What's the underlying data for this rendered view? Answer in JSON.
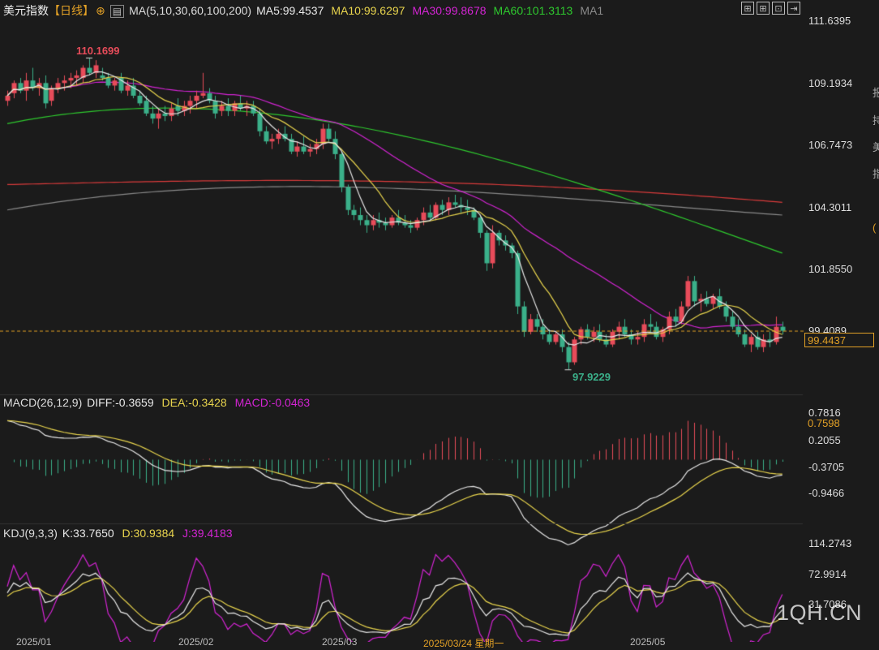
{
  "header": {
    "title": "美元指数",
    "period": "【日线】",
    "ma_label": "MA(5,10,30,60,100,200)",
    "ma_values": [
      {
        "label": "MA5:99.4537",
        "color": "#e8e8e8"
      },
      {
        "label": "MA10:99.6297",
        "color": "#e8d44d"
      },
      {
        "label": "MA30:99.8678",
        "color": "#d424d4"
      },
      {
        "label": "MA60:101.3113",
        "color": "#2ec92e"
      },
      {
        "label": "MA1",
        "color": "#8a8a8a"
      }
    ]
  },
  "toolbar_icons": [
    "grid-icon",
    "grid-icon",
    "export-icon",
    "next-icon"
  ],
  "macd_header": {
    "label": "MACD(26,12,9)",
    "diff": "DIFF:-0.3659",
    "dea": "DEA:-0.3428",
    "macd": "MACD:-0.0463"
  },
  "kdj_header": {
    "label": "KDJ(9,3,3)",
    "k": "K:33.7650",
    "d": "D:30.9384",
    "j": "J:39.4183"
  },
  "price_axis": [
    "111.6395",
    "109.1934",
    "106.7473",
    "104.3011",
    "101.8550",
    "99.4089"
  ],
  "macd_axis": [
    "0.7816",
    "0.2055",
    "-0.3705",
    "-0.9466"
  ],
  "kdj_axis": [
    "114.2743",
    "72.9914",
    "31.7086"
  ],
  "last_price": "99.4437",
  "macd_last": "0.7598",
  "high_label": "110.1699",
  "low_label": "97.9229",
  "x_dates": [
    "2025/01",
    "2025/02",
    "2025/03",
    "2025/03/24 星期一",
    "2025/05"
  ],
  "edge_glyphs": [
    "报",
    "持",
    "美",
    "指",
    "("
  ],
  "watermark": "1QH.CN",
  "colors": {
    "up": "#e84c5a",
    "down": "#3bb08a",
    "bg": "#1b1b1b",
    "ma5": "#e8e8e8",
    "ma10": "#e8d44d",
    "ma30": "#d424d4",
    "ma60": "#2ec92e",
    "ma100": "#8a8a8a",
    "ma200": "#d93b3b",
    "lastline": "#e3a126"
  },
  "chart_data": {
    "type": "candlestick",
    "ohlc": [
      [
        108.5,
        108.9,
        108.3,
        108.7
      ],
      [
        108.8,
        109.3,
        108.6,
        109.2
      ],
      [
        109.2,
        109.4,
        108.8,
        108.9
      ],
      [
        108.9,
        109.6,
        108.5,
        109.3
      ],
      [
        109.3,
        109.8,
        108.9,
        109.0
      ],
      [
        109.0,
        109.4,
        108.7,
        109.2
      ],
      [
        109.2,
        109.5,
        108.2,
        108.4
      ],
      [
        108.5,
        109.1,
        108.3,
        109.0
      ],
      [
        109.0,
        109.4,
        108.8,
        109.2
      ],
      [
        109.2,
        109.5,
        108.9,
        109.3
      ],
      [
        109.3,
        109.6,
        109.0,
        109.4
      ],
      [
        109.4,
        109.7,
        109.1,
        109.5
      ],
      [
        109.4,
        109.9,
        109.2,
        109.8
      ],
      [
        109.8,
        110.2,
        109.5,
        109.6
      ],
      [
        109.6,
        110.1,
        109.4,
        109.9
      ],
      [
        109.5,
        109.8,
        109.3,
        109.4
      ],
      [
        109.4,
        109.6,
        109.0,
        109.1
      ],
      [
        109.1,
        109.4,
        108.9,
        109.3
      ],
      [
        109.4,
        109.6,
        108.8,
        108.9
      ],
      [
        108.9,
        109.3,
        108.7,
        109.1
      ],
      [
        109.1,
        109.4,
        108.6,
        108.7
      ],
      [
        108.7,
        108.9,
        108.3,
        108.4
      ],
      [
        108.5,
        108.7,
        107.9,
        108.0
      ],
      [
        108.0,
        108.3,
        107.6,
        107.8
      ],
      [
        107.8,
        108.2,
        107.4,
        108.0
      ],
      [
        108.0,
        108.3,
        107.7,
        107.9
      ],
      [
        107.9,
        108.4,
        107.7,
        108.2
      ],
      [
        108.3,
        108.6,
        107.9,
        108.1
      ],
      [
        108.1,
        108.5,
        107.9,
        108.3
      ],
      [
        108.3,
        108.7,
        108.0,
        108.5
      ],
      [
        108.5,
        108.9,
        108.2,
        108.7
      ],
      [
        108.7,
        109.6,
        108.6,
        108.8
      ],
      [
        108.8,
        109.0,
        108.4,
        108.5
      ],
      [
        108.5,
        108.7,
        107.8,
        108.0
      ],
      [
        108.1,
        108.5,
        107.9,
        108.3
      ],
      [
        108.3,
        108.6,
        107.9,
        108.1
      ],
      [
        108.1,
        108.5,
        107.9,
        108.4
      ],
      [
        108.4,
        108.7,
        108.1,
        108.2
      ],
      [
        108.2,
        108.5,
        107.9,
        108.3
      ],
      [
        108.3,
        108.5,
        107.9,
        108.0
      ],
      [
        108.0,
        108.2,
        107.1,
        107.3
      ],
      [
        107.3,
        107.5,
        106.8,
        106.9
      ],
      [
        106.9,
        107.2,
        106.6,
        107.0
      ],
      [
        107.0,
        107.4,
        106.8,
        107.2
      ],
      [
        107.2,
        107.5,
        106.9,
        107.0
      ],
      [
        107.0,
        107.2,
        106.4,
        106.5
      ],
      [
        106.5,
        106.9,
        106.3,
        106.7
      ],
      [
        106.7,
        107.1,
        106.4,
        106.5
      ],
      [
        106.5,
        106.8,
        106.3,
        106.6
      ],
      [
        106.6,
        107.0,
        106.4,
        106.8
      ],
      [
        106.8,
        107.6,
        106.6,
        107.4
      ],
      [
        107.4,
        107.6,
        106.9,
        107.0
      ],
      [
        107.0,
        107.3,
        106.2,
        106.4
      ],
      [
        106.4,
        106.5,
        104.9,
        105.1
      ],
      [
        105.1,
        105.2,
        104.0,
        104.2
      ],
      [
        104.2,
        104.4,
        103.8,
        104.0
      ],
      [
        104.0,
        104.3,
        103.6,
        103.8
      ],
      [
        103.8,
        104.0,
        103.3,
        103.6
      ],
      [
        103.6,
        104.0,
        103.4,
        103.8
      ],
      [
        103.8,
        104.1,
        103.5,
        103.7
      ],
      [
        103.7,
        103.9,
        103.4,
        103.6
      ],
      [
        103.6,
        104.0,
        103.5,
        103.9
      ],
      [
        103.9,
        104.2,
        103.6,
        103.7
      ],
      [
        103.7,
        104.0,
        103.5,
        103.6
      ],
      [
        103.6,
        103.8,
        103.3,
        103.5
      ],
      [
        103.5,
        103.9,
        103.4,
        103.8
      ],
      [
        103.8,
        104.3,
        103.6,
        104.1
      ],
      [
        104.1,
        104.4,
        103.8,
        103.9
      ],
      [
        103.9,
        104.5,
        103.8,
        104.4
      ],
      [
        104.4,
        104.6,
        104.0,
        104.2
      ],
      [
        104.2,
        104.7,
        104.0,
        104.5
      ],
      [
        104.5,
        104.8,
        104.3,
        104.4
      ],
      [
        104.4,
        104.7,
        104.1,
        104.3
      ],
      [
        104.3,
        104.6,
        104.0,
        104.2
      ],
      [
        104.2,
        104.3,
        103.8,
        103.9
      ],
      [
        103.9,
        104.0,
        103.1,
        103.3
      ],
      [
        103.3,
        103.4,
        101.8,
        102.1
      ],
      [
        102.1,
        103.6,
        101.9,
        103.3
      ],
      [
        103.3,
        103.4,
        102.8,
        103.0
      ],
      [
        103.0,
        103.2,
        102.6,
        102.8
      ],
      [
        102.8,
        102.9,
        102.3,
        102.5
      ],
      [
        102.5,
        102.6,
        100.1,
        100.4
      ],
      [
        100.4,
        100.6,
        99.2,
        99.4
      ],
      [
        99.4,
        100.1,
        99.3,
        99.9
      ],
      [
        99.9,
        100.1,
        99.4,
        99.6
      ],
      [
        99.6,
        99.9,
        99.1,
        99.3
      ],
      [
        99.3,
        99.5,
        98.9,
        99.0
      ],
      [
        99.0,
        99.4,
        98.9,
        99.3
      ],
      [
        99.3,
        99.5,
        98.6,
        98.8
      ],
      [
        98.8,
        99.0,
        97.92,
        98.2
      ],
      [
        98.2,
        99.2,
        98.1,
        99.1
      ],
      [
        99.1,
        99.6,
        98.9,
        99.5
      ],
      [
        99.5,
        99.7,
        99.1,
        99.2
      ],
      [
        99.2,
        99.6,
        99.0,
        99.4
      ],
      [
        99.4,
        99.7,
        99.0,
        99.1
      ],
      [
        99.1,
        99.3,
        98.8,
        98.9
      ],
      [
        98.9,
        99.5,
        98.8,
        99.4
      ],
      [
        99.4,
        99.8,
        99.1,
        99.6
      ],
      [
        99.6,
        99.9,
        99.2,
        99.3
      ],
      [
        99.3,
        99.5,
        98.9,
        99.1
      ],
      [
        99.1,
        99.4,
        98.9,
        99.2
      ],
      [
        99.2,
        99.9,
        99.0,
        99.7
      ],
      [
        99.7,
        100.1,
        99.4,
        99.6
      ],
      [
        99.6,
        99.8,
        99.1,
        99.2
      ],
      [
        99.2,
        99.6,
        99.0,
        99.5
      ],
      [
        99.5,
        100.2,
        99.3,
        100.0
      ],
      [
        100.0,
        100.3,
        99.6,
        99.8
      ],
      [
        99.8,
        100.6,
        99.7,
        100.4
      ],
      [
        100.4,
        101.6,
        100.3,
        101.4
      ],
      [
        101.4,
        101.6,
        100.4,
        100.6
      ],
      [
        100.6,
        100.9,
        100.2,
        100.7
      ],
      [
        100.7,
        101.0,
        100.4,
        100.5
      ],
      [
        100.5,
        100.9,
        100.3,
        100.8
      ],
      [
        100.8,
        101.1,
        100.3,
        100.4
      ],
      [
        100.4,
        100.6,
        99.8,
        100.0
      ],
      [
        100.0,
        100.2,
        99.5,
        99.6
      ],
      [
        99.6,
        99.9,
        99.2,
        99.3
      ],
      [
        99.3,
        99.5,
        98.8,
        98.9
      ],
      [
        98.9,
        99.3,
        98.6,
        99.2
      ],
      [
        99.2,
        99.4,
        98.7,
        98.8
      ],
      [
        98.8,
        99.3,
        98.6,
        99.1
      ],
      [
        99.1,
        99.4,
        98.8,
        99.0
      ],
      [
        99.0,
        100.0,
        98.9,
        99.6
      ],
      [
        99.6,
        99.8,
        99.3,
        99.44
      ]
    ],
    "ylim": [
      97.0,
      111.6395
    ],
    "tick_labels": [
      "111.6395",
      "109.1934",
      "106.7473",
      "104.3011",
      "101.8550",
      "99.4089"
    ],
    "xlabels": [
      "2025/01",
      "2025/02",
      "2025/03",
      "2025/03/24 星期一",
      "2025/05"
    ]
  }
}
